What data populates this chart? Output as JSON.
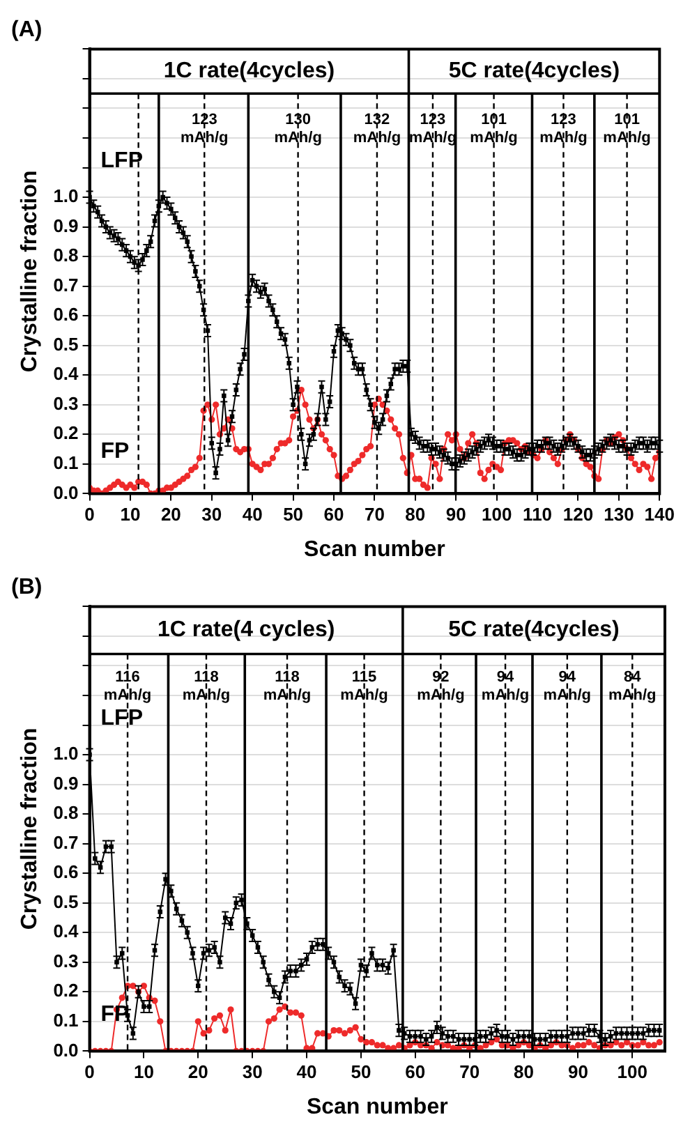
{
  "chart_data": [
    {
      "type": "line",
      "title": "(A)",
      "xlabel": "Scan number",
      "ylabel": "Crystalline fraction",
      "xlim": [
        0,
        140
      ],
      "ylim": [
        0,
        1.5
      ],
      "xticks": [
        0,
        10,
        20,
        30,
        40,
        50,
        60,
        70,
        80,
        90,
        100,
        110,
        120,
        130,
        140
      ],
      "yticks": [
        {
          "value": 0,
          "label": "0.0"
        },
        {
          "value": 0.1,
          "label": "0.1"
        },
        {
          "value": 0.2,
          "label": "0.2"
        },
        {
          "value": 0.3,
          "label": "0.3"
        },
        {
          "value": 0.4,
          "label": "0.4"
        },
        {
          "value": 0.5,
          "label": "0.5"
        },
        {
          "value": 0.6,
          "label": "0.6"
        },
        {
          "value": 0.7,
          "label": "0.7"
        },
        {
          "value": 0.8,
          "label": "0.8"
        },
        {
          "value": 0.9,
          "label": "0.9"
        },
        {
          "value": 1,
          "label": "1.0"
        },
        {
          "value": 1.1,
          "label": null
        },
        {
          "value": 1.2,
          "label": null
        },
        {
          "value": 1.3,
          "label": null
        },
        {
          "value": 1.4,
          "label": null
        },
        {
          "value": 1.5,
          "label": null
        }
      ],
      "grid": "y",
      "x": [
        0,
        1,
        2,
        3,
        4,
        5,
        6,
        7,
        8,
        9,
        10,
        11,
        12,
        13,
        14,
        15,
        16,
        17,
        18,
        19,
        20,
        21,
        22,
        23,
        24,
        25,
        26,
        27,
        28,
        29,
        30,
        31,
        32,
        33,
        34,
        35,
        36,
        37,
        38,
        39,
        40,
        41,
        42,
        43,
        44,
        45,
        46,
        47,
        48,
        49,
        50,
        51,
        52,
        53,
        54,
        55,
        56,
        57,
        58,
        59,
        60,
        61,
        62,
        63,
        64,
        65,
        66,
        67,
        68,
        69,
        70,
        71,
        72,
        73,
        74,
        75,
        76,
        77,
        78,
        79,
        80,
        81,
        82,
        83,
        84,
        85,
        86,
        87,
        88,
        89,
        90,
        91,
        92,
        93,
        94,
        95,
        96,
        97,
        98,
        99,
        100,
        101,
        102,
        103,
        104,
        105,
        106,
        107,
        108,
        109,
        110,
        111,
        112,
        113,
        114,
        115,
        116,
        117,
        118,
        119,
        120,
        121,
        122,
        123,
        124,
        125,
        126,
        127,
        128,
        129,
        130,
        131,
        132,
        133,
        134,
        135,
        136,
        137,
        138,
        139,
        140
      ],
      "series": [
        {
          "name": "LFP",
          "color": "#000000",
          "marker": "square",
          "values": [
            1.0,
            0.97,
            0.95,
            0.92,
            0.9,
            0.88,
            0.87,
            0.86,
            0.84,
            0.82,
            0.8,
            0.78,
            0.77,
            0.79,
            0.82,
            0.85,
            0.92,
            0.97,
            1.0,
            0.98,
            0.96,
            0.93,
            0.9,
            0.88,
            0.85,
            0.8,
            0.75,
            0.7,
            0.62,
            0.55,
            0.17,
            0.07,
            0.15,
            0.33,
            0.18,
            0.26,
            0.35,
            0.42,
            0.47,
            0.65,
            0.72,
            0.7,
            0.68,
            0.69,
            0.65,
            0.62,
            0.58,
            0.54,
            0.52,
            0.44,
            0.3,
            0.36,
            0.2,
            0.1,
            0.18,
            0.2,
            0.25,
            0.36,
            0.25,
            0.31,
            0.48,
            0.55,
            0.54,
            0.52,
            0.5,
            0.44,
            0.42,
            0.42,
            0.35,
            0.3,
            0.24,
            0.22,
            0.25,
            0.33,
            0.37,
            0.42,
            0.42,
            0.43,
            0.43,
            0.2,
            0.19,
            0.17,
            0.16,
            0.16,
            0.15,
            0.15,
            0.14,
            0.13,
            0.12,
            0.1,
            0.1,
            0.11,
            0.12,
            0.13,
            0.14,
            0.15,
            0.16,
            0.17,
            0.18,
            0.17,
            0.16,
            0.16,
            0.15,
            0.15,
            0.14,
            0.13,
            0.13,
            0.14,
            0.15,
            0.15,
            0.16,
            0.16,
            0.17,
            0.17,
            0.16,
            0.15,
            0.16,
            0.17,
            0.18,
            0.17,
            0.16,
            0.14,
            0.13,
            0.13,
            0.14,
            0.15,
            0.16,
            0.17,
            0.18,
            0.17,
            0.16,
            0.16,
            0.15,
            0.15,
            0.16,
            0.17,
            0.17,
            0.16,
            0.17,
            0.17,
            0.16
          ],
          "errors": [
            0.02,
            0.02,
            0.02,
            0.02,
            0.02,
            0.02,
            0.02,
            0.02,
            0.02,
            0.02,
            0.02,
            0.02,
            0.02,
            0.02,
            0.02,
            0.02,
            0.02,
            0.02,
            0.02,
            0.02,
            0.02,
            0.02,
            0.02,
            0.02,
            0.02,
            0.02,
            0.02,
            0.02,
            0.02,
            0.02,
            0.02,
            0.02,
            0.02,
            0.02,
            0.02,
            0.02,
            0.02,
            0.02,
            0.02,
            0.02,
            0.02,
            0.02,
            0.02,
            0.02,
            0.02,
            0.02,
            0.02,
            0.02,
            0.02,
            0.02,
            0.02,
            0.02,
            0.02,
            0.02,
            0.02,
            0.02,
            0.02,
            0.02,
            0.02,
            0.02,
            0.02,
            0.02,
            0.02,
            0.02,
            0.02,
            0.02,
            0.02,
            0.02,
            0.02,
            0.02,
            0.02,
            0.02,
            0.02,
            0.02,
            0.02,
            0.02,
            0.02,
            0.02,
            0.02,
            0.02,
            0.02,
            0.02,
            0.02,
            0.02,
            0.02,
            0.02,
            0.02,
            0.02,
            0.02,
            0.02,
            0.02,
            0.02,
            0.02,
            0.02,
            0.02,
            0.02,
            0.02,
            0.02,
            0.02,
            0.02,
            0.02,
            0.02,
            0.02,
            0.02,
            0.02,
            0.02,
            0.02,
            0.02,
            0.02,
            0.02,
            0.02,
            0.02,
            0.02,
            0.02,
            0.02,
            0.02,
            0.02,
            0.02,
            0.02,
            0.02,
            0.02,
            0.02,
            0.02,
            0.02,
            0.02,
            0.02,
            0.02,
            0.02,
            0.02,
            0.02,
            0.02,
            0.02,
            0.02,
            0.02,
            0.02,
            0.02,
            0.02,
            0.02,
            0.02,
            0.02,
            0.02
          ]
        },
        {
          "name": "FP",
          "color": "#ee2a2a",
          "marker": "circle",
          "values": [
            0.02,
            0.01,
            0.01,
            0.0,
            0.01,
            0.02,
            0.03,
            0.04,
            0.03,
            0.02,
            0.03,
            0.02,
            0.04,
            0.04,
            0.03,
            0.0,
            0.0,
            0.01,
            0.01,
            0.02,
            0.02,
            0.03,
            0.04,
            0.05,
            0.06,
            0.08,
            0.09,
            0.12,
            0.28,
            0.3,
            0.25,
            0.3,
            0.2,
            0.22,
            0.25,
            0.22,
            0.15,
            0.14,
            0.15,
            0.15,
            0.1,
            0.09,
            0.08,
            0.1,
            0.1,
            0.12,
            0.15,
            0.17,
            0.17,
            0.18,
            0.26,
            0.28,
            0.35,
            0.3,
            0.25,
            0.22,
            0.25,
            0.2,
            0.18,
            0.15,
            0.13,
            0.06,
            0.05,
            0.06,
            0.08,
            0.1,
            0.11,
            0.13,
            0.15,
            0.16,
            0.3,
            0.32,
            0.3,
            0.28,
            0.25,
            0.22,
            0.2,
            0.12,
            0.07,
            0.13,
            0.05,
            0.05,
            0.03,
            0.02,
            0.12,
            0.1,
            0.05,
            0.15,
            0.2,
            0.18,
            0.2,
            0.15,
            0.12,
            0.17,
            0.2,
            0.17,
            0.07,
            0.05,
            0.08,
            0.1,
            0.09,
            0.08,
            0.17,
            0.18,
            0.18,
            0.17,
            0.15,
            0.16,
            0.14,
            0.13,
            0.12,
            0.15,
            0.18,
            0.14,
            0.12,
            0.1,
            0.15,
            0.18,
            0.2,
            0.18,
            0.15,
            0.12,
            0.1,
            0.09,
            0.06,
            0.05,
            0.15,
            0.18,
            0.17,
            0.19,
            0.2,
            0.18,
            0.15,
            0.12,
            0.1,
            0.08,
            0.1,
            0.09,
            0.05,
            0.12,
            0.14
          ]
        }
      ],
      "ref_lines": [
        {
          "axis": "x",
          "value": 12,
          "line_style": "dashed"
        },
        {
          "axis": "x",
          "value": 17,
          "line_style": "solid"
        },
        {
          "axis": "x",
          "value": 28.2,
          "line_style": "dashed"
        },
        {
          "axis": "x",
          "value": 39,
          "line_style": "solid"
        },
        {
          "axis": "x",
          "value": 51.2,
          "line_style": "dashed"
        },
        {
          "axis": "x",
          "value": 61.7,
          "line_style": "solid"
        },
        {
          "axis": "x",
          "value": 70.6,
          "line_style": "dashed"
        },
        {
          "axis": "x",
          "value": 78.4,
          "line_style": "solid"
        },
        {
          "axis": "x",
          "value": 84.3,
          "line_style": "dashed"
        },
        {
          "axis": "x",
          "value": 89.9,
          "line_style": "solid"
        },
        {
          "axis": "x",
          "value": 99.3,
          "line_style": "dashed"
        },
        {
          "axis": "x",
          "value": 108.7,
          "line_style": "solid"
        },
        {
          "axis": "x",
          "value": 116.4,
          "line_style": "dashed"
        },
        {
          "axis": "x",
          "value": 124,
          "line_style": "solid"
        },
        {
          "axis": "x",
          "value": 132,
          "line_style": "dashed"
        },
        {
          "axis": "y",
          "value": 1.35,
          "line_style": "solid"
        }
      ],
      "annotations": [
        "1C rate(4cycles)",
        "5C rate(4cycles)",
        {
          "text": "123\nmAh/g",
          "x": 28.2,
          "y": 1.23
        },
        {
          "text": "130\nmAh/g",
          "x": 51.2,
          "y": 1.23
        },
        {
          "text": "132\nmAh/g",
          "x": 70.6,
          "y": 1.23
        },
        {
          "text": "123\nmAh/g",
          "x": 84.3,
          "y": 1.23
        },
        {
          "text": "101\nmAh/g",
          "x": 99.3,
          "y": 1.23
        },
        {
          "text": "123\nmAh/g",
          "x": 116.4,
          "y": 1.23
        },
        {
          "text": "101\nmAh/g",
          "x": 132,
          "y": 1.23
        }
      ]
    },
    {
      "type": "line",
      "title": "(B)",
      "xlabel": "Scan number",
      "ylabel": "Crystalline fraction",
      "xlim": [
        0,
        106
      ],
      "ylim": [
        0,
        1.5
      ],
      "xticks": [
        0,
        10,
        20,
        30,
        40,
        50,
        60,
        70,
        80,
        90,
        100
      ],
      "yticks": [
        {
          "value": 0,
          "label": "0.0"
        },
        {
          "value": 0.1,
          "label": "0.1"
        },
        {
          "value": 0.2,
          "label": "0.2"
        },
        {
          "value": 0.3,
          "label": "0.3"
        },
        {
          "value": 0.4,
          "label": "0.4"
        },
        {
          "value": 0.5,
          "label": "0.5"
        },
        {
          "value": 0.6,
          "label": "0.6"
        },
        {
          "value": 0.7,
          "label": "0.7"
        },
        {
          "value": 0.8,
          "label": "0.8"
        },
        {
          "value": 0.9,
          "label": "0.9"
        },
        {
          "value": 1,
          "label": "1.0"
        },
        {
          "value": 1.1,
          "label": null
        },
        {
          "value": 1.2,
          "label": null
        },
        {
          "value": 1.3,
          "label": null
        },
        {
          "value": 1.4,
          "label": null
        },
        {
          "value": 1.5,
          "label": null
        }
      ],
      "grid": "y",
      "x": [
        0,
        1,
        2,
        3,
        4,
        5,
        6,
        7,
        8,
        9,
        10,
        11,
        12,
        13,
        14,
        15,
        16,
        17,
        18,
        19,
        20,
        21,
        22,
        23,
        24,
        25,
        26,
        27,
        28,
        29,
        30,
        31,
        32,
        33,
        34,
        35,
        36,
        37,
        38,
        39,
        40,
        41,
        42,
        43,
        44,
        45,
        46,
        47,
        48,
        49,
        50,
        51,
        52,
        53,
        54,
        55,
        56,
        57,
        58,
        59,
        60,
        61,
        62,
        63,
        64,
        65,
        66,
        67,
        68,
        69,
        70,
        71,
        72,
        73,
        74,
        75,
        76,
        77,
        78,
        79,
        80,
        81,
        82,
        83,
        84,
        85,
        86,
        87,
        88,
        89,
        90,
        91,
        92,
        93,
        94,
        95,
        96,
        97,
        98,
        99,
        100,
        101,
        102,
        103,
        104,
        105
      ],
      "series": [
        {
          "name": "LFP",
          "color": "#000000",
          "marker": "square",
          "values": [
            1.0,
            0.65,
            0.62,
            0.69,
            0.69,
            0.3,
            0.33,
            0.12,
            0.06,
            0.2,
            0.15,
            0.15,
            0.34,
            0.47,
            0.58,
            0.54,
            0.48,
            0.44,
            0.4,
            0.33,
            0.22,
            0.33,
            0.34,
            0.35,
            0.3,
            0.45,
            0.43,
            0.5,
            0.51,
            0.43,
            0.39,
            0.35,
            0.3,
            0.24,
            0.2,
            0.18,
            0.25,
            0.27,
            0.27,
            0.29,
            0.31,
            0.35,
            0.36,
            0.36,
            0.33,
            0.3,
            0.25,
            0.22,
            0.21,
            0.16,
            0.29,
            0.27,
            0.33,
            0.29,
            0.29,
            0.28,
            0.34,
            0.07,
            0.06,
            0.05,
            0.05,
            0.05,
            0.04,
            0.05,
            0.08,
            0.06,
            0.05,
            0.05,
            0.04,
            0.04,
            0.04,
            0.04,
            0.05,
            0.05,
            0.06,
            0.07,
            0.05,
            0.05,
            0.04,
            0.05,
            0.05,
            0.05,
            0.04,
            0.04,
            0.04,
            0.05,
            0.05,
            0.05,
            0.05,
            0.06,
            0.06,
            0.06,
            0.07,
            0.07,
            0.05,
            0.04,
            0.05,
            0.06,
            0.06,
            0.06,
            0.06,
            0.06,
            0.06,
            0.07,
            0.07,
            0.07
          ],
          "errors": [
            0.02,
            0.02,
            0.02,
            0.02,
            0.02,
            0.02,
            0.02,
            0.02,
            0.02,
            0.02,
            0.02,
            0.02,
            0.02,
            0.02,
            0.02,
            0.02,
            0.02,
            0.02,
            0.02,
            0.02,
            0.02,
            0.02,
            0.02,
            0.02,
            0.02,
            0.02,
            0.02,
            0.02,
            0.02,
            0.02,
            0.02,
            0.02,
            0.02,
            0.02,
            0.02,
            0.02,
            0.02,
            0.02,
            0.02,
            0.02,
            0.02,
            0.02,
            0.02,
            0.02,
            0.02,
            0.02,
            0.02,
            0.02,
            0.02,
            0.02,
            0.02,
            0.02,
            0.02,
            0.02,
            0.02,
            0.02,
            0.02,
            0.02,
            0.02,
            0.02,
            0.02,
            0.02,
            0.02,
            0.02,
            0.02,
            0.02,
            0.02,
            0.02,
            0.02,
            0.02,
            0.02,
            0.02,
            0.02,
            0.02,
            0.02,
            0.02,
            0.02,
            0.02,
            0.02,
            0.02,
            0.02,
            0.02,
            0.02,
            0.02,
            0.02,
            0.02,
            0.02,
            0.02,
            0.02,
            0.02,
            0.02,
            0.02,
            0.02,
            0.02,
            0.02,
            0.02,
            0.02,
            0.02,
            0.02,
            0.02,
            0.02,
            0.02,
            0.02,
            0.02,
            0.02,
            0.02
          ]
        },
        {
          "name": "FP",
          "color": "#ee2a2a",
          "marker": "circle",
          "values": [
            0,
            0,
            0,
            0,
            0,
            0.14,
            0.18,
            0.22,
            0.22,
            0.2,
            0.22,
            0.18,
            0.17,
            0.1,
            0,
            0,
            0,
            0,
            0,
            0,
            0.1,
            0.06,
            0.07,
            0.11,
            0.12,
            0.07,
            0.14,
            0,
            0,
            0,
            0,
            0,
            0,
            0.1,
            0.11,
            0.14,
            0.15,
            0.13,
            0.13,
            0.12,
            0.01,
            0.01,
            0.06,
            0.06,
            0.05,
            0.07,
            0.07,
            0.06,
            0.07,
            0.08,
            0.04,
            0.03,
            0.03,
            0.02,
            0.02,
            0.01,
            0.01,
            0.02,
            0.01,
            0.02,
            0.03,
            0.02,
            0.02,
            0.01,
            0.03,
            0.02,
            0.02,
            0.01,
            0.01,
            0.02,
            0.01,
            0.02,
            0.01,
            0.02,
            0.03,
            0.04,
            0.02,
            0.02,
            0.01,
            0.02,
            0.03,
            0.02,
            0.01,
            0.02,
            0.01,
            0.02,
            0.03,
            0.02,
            0.02,
            0.01,
            0.02,
            0.02,
            0.03,
            0.02,
            0.01,
            0.02,
            0.02,
            0.03,
            0.02,
            0.03,
            0.02,
            0.02,
            0.03,
            0.02,
            0.02,
            0.03
          ]
        }
      ],
      "ref_lines": [
        {
          "axis": "x",
          "value": 7,
          "line_style": "dashed"
        },
        {
          "axis": "x",
          "value": 14.5,
          "line_style": "solid"
        },
        {
          "axis": "x",
          "value": 21.5,
          "line_style": "dashed"
        },
        {
          "axis": "x",
          "value": 28.6,
          "line_style": "solid"
        },
        {
          "axis": "x",
          "value": 36.4,
          "line_style": "dashed"
        },
        {
          "axis": "x",
          "value": 43.6,
          "line_style": "solid"
        },
        {
          "axis": "x",
          "value": 50.6,
          "line_style": "dashed"
        },
        {
          "axis": "x",
          "value": 57.7,
          "line_style": "solid"
        },
        {
          "axis": "x",
          "value": 64.7,
          "line_style": "dashed"
        },
        {
          "axis": "x",
          "value": 71.2,
          "line_style": "solid"
        },
        {
          "axis": "x",
          "value": 76.6,
          "line_style": "dashed"
        },
        {
          "axis": "x",
          "value": 81.6,
          "line_style": "solid"
        },
        {
          "axis": "x",
          "value": 88,
          "line_style": "dashed"
        },
        {
          "axis": "x",
          "value": 94.3,
          "line_style": "solid"
        },
        {
          "axis": "x",
          "value": 100,
          "line_style": "dashed"
        },
        {
          "axis": "y",
          "value": 1.34,
          "line_style": "solid"
        }
      ],
      "annotations": [
        "1C rate(4 cycles)",
        "5C rate(4cycles)",
        {
          "text": "116\nmAh/g",
          "x": 7,
          "y": 1.23
        },
        {
          "text": "118\nmAh/g",
          "x": 21.5,
          "y": 1.23
        },
        {
          "text": "118\nmAh/g",
          "x": 36.4,
          "y": 1.23
        },
        {
          "text": "115\nmAh/g",
          "x": 50.6,
          "y": 1.23
        },
        {
          "text": "92\nmAh/g",
          "x": 64.7,
          "y": 1.23
        },
        {
          "text": "94\nmAh/g",
          "x": 76.6,
          "y": 1.23
        },
        {
          "text": "94\nmAh/g",
          "x": 88,
          "y": 1.23
        },
        {
          "text": "84\nmAh/g",
          "x": 100,
          "y": 1.23
        }
      ]
    }
  ]
}
